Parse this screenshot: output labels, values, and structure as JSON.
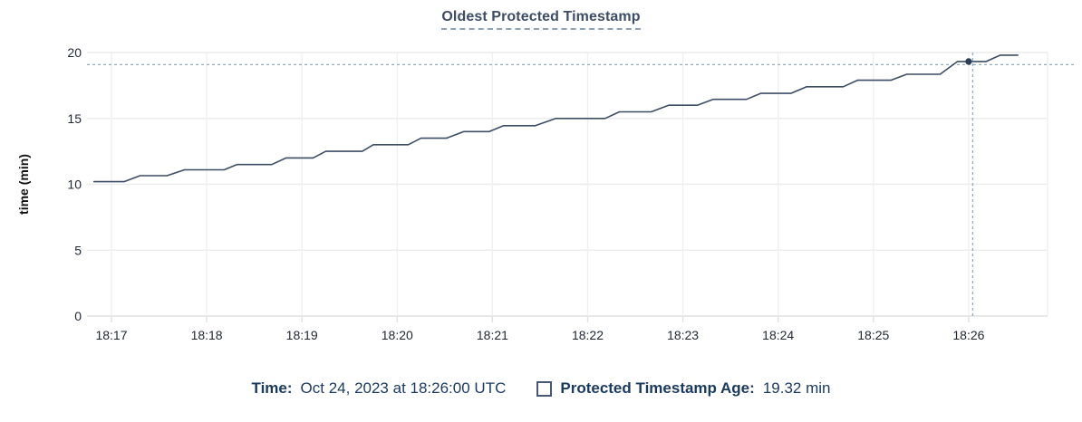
{
  "title": "Oldest Protected Timestamp",
  "y_axis": {
    "label": "time (min)",
    "ticks": [
      0,
      5,
      10,
      15,
      20
    ]
  },
  "x_axis": {
    "ticks": [
      "18:17",
      "18:18",
      "18:19",
      "18:20",
      "18:21",
      "18:22",
      "18:23",
      "18:24",
      "18:25",
      "18:26"
    ]
  },
  "footer": {
    "time_label": "Time:",
    "time_value": "Oct 24, 2023 at 18:26:00 UTC",
    "series_label": "Protected Timestamp Age:",
    "series_value": "19.32 min",
    "swatch_icon": "empty-square-outline"
  },
  "colors": {
    "line": "#3c4e66",
    "dot": "#2b3f58",
    "crosshair": "#94abbb",
    "grid": "#ececec",
    "grid_vertical": "#f0f0f0",
    "axis": "#e0e0e0",
    "tick_text": "#1f2633",
    "title_text": "#3e4d66",
    "footer_text": "#1a3a5f"
  },
  "chart_data": {
    "type": "line",
    "title": "Oldest Protected Timestamp",
    "xlabel": "",
    "ylabel": "time (min)",
    "ylim": [
      0,
      20
    ],
    "x_range": [
      "18:16:49",
      "18:26:31"
    ],
    "x_tick_labels": [
      "18:17",
      "18:18",
      "18:19",
      "18:20",
      "18:21",
      "18:22",
      "18:23",
      "18:24",
      "18:25",
      "18:26"
    ],
    "grid": true,
    "legend_position": "bottom",
    "series": [
      {
        "name": "Protected Timestamp Age",
        "unit": "min",
        "points": [
          [
            "18:16:49",
            10.2
          ],
          [
            "18:17:08",
            10.2
          ],
          [
            "18:17:18",
            10.65
          ],
          [
            "18:17:35",
            10.65
          ],
          [
            "18:17:46",
            11.1
          ],
          [
            "18:18:11",
            11.1
          ],
          [
            "18:18:19",
            11.5
          ],
          [
            "18:18:41",
            11.5
          ],
          [
            "18:18:50",
            12.0
          ],
          [
            "18:19:07",
            12.0
          ],
          [
            "18:19:15",
            12.5
          ],
          [
            "18:19:38",
            12.5
          ],
          [
            "18:19:45",
            13.0
          ],
          [
            "18:20:07",
            13.0
          ],
          [
            "18:20:15",
            13.5
          ],
          [
            "18:20:31",
            13.5
          ],
          [
            "18:20:42",
            14.0
          ],
          [
            "18:20:58",
            14.0
          ],
          [
            "18:21:07",
            14.45
          ],
          [
            "18:21:27",
            14.45
          ],
          [
            "18:21:40",
            15.0
          ],
          [
            "18:22:11",
            15.0
          ],
          [
            "18:22:20",
            15.5
          ],
          [
            "18:22:40",
            15.5
          ],
          [
            "18:22:51",
            16.0
          ],
          [
            "18:23:09",
            16.0
          ],
          [
            "18:23:19",
            16.45
          ],
          [
            "18:23:40",
            16.45
          ],
          [
            "18:23:49",
            16.9
          ],
          [
            "18:24:08",
            16.9
          ],
          [
            "18:24:18",
            17.4
          ],
          [
            "18:24:41",
            17.4
          ],
          [
            "18:24:50",
            17.9
          ],
          [
            "18:25:11",
            17.9
          ],
          [
            "18:25:21",
            18.35
          ],
          [
            "18:25:42",
            18.35
          ],
          [
            "18:25:53",
            19.32
          ],
          [
            "18:26:11",
            19.32
          ],
          [
            "18:26:20",
            19.8
          ],
          [
            "18:26:31",
            19.8
          ]
        ]
      }
    ],
    "hover": {
      "time": "18:26:00",
      "time_display": "Oct 24, 2023 at 18:26:00 UTC",
      "value": 19.32,
      "value_display": "19.32 min"
    }
  }
}
